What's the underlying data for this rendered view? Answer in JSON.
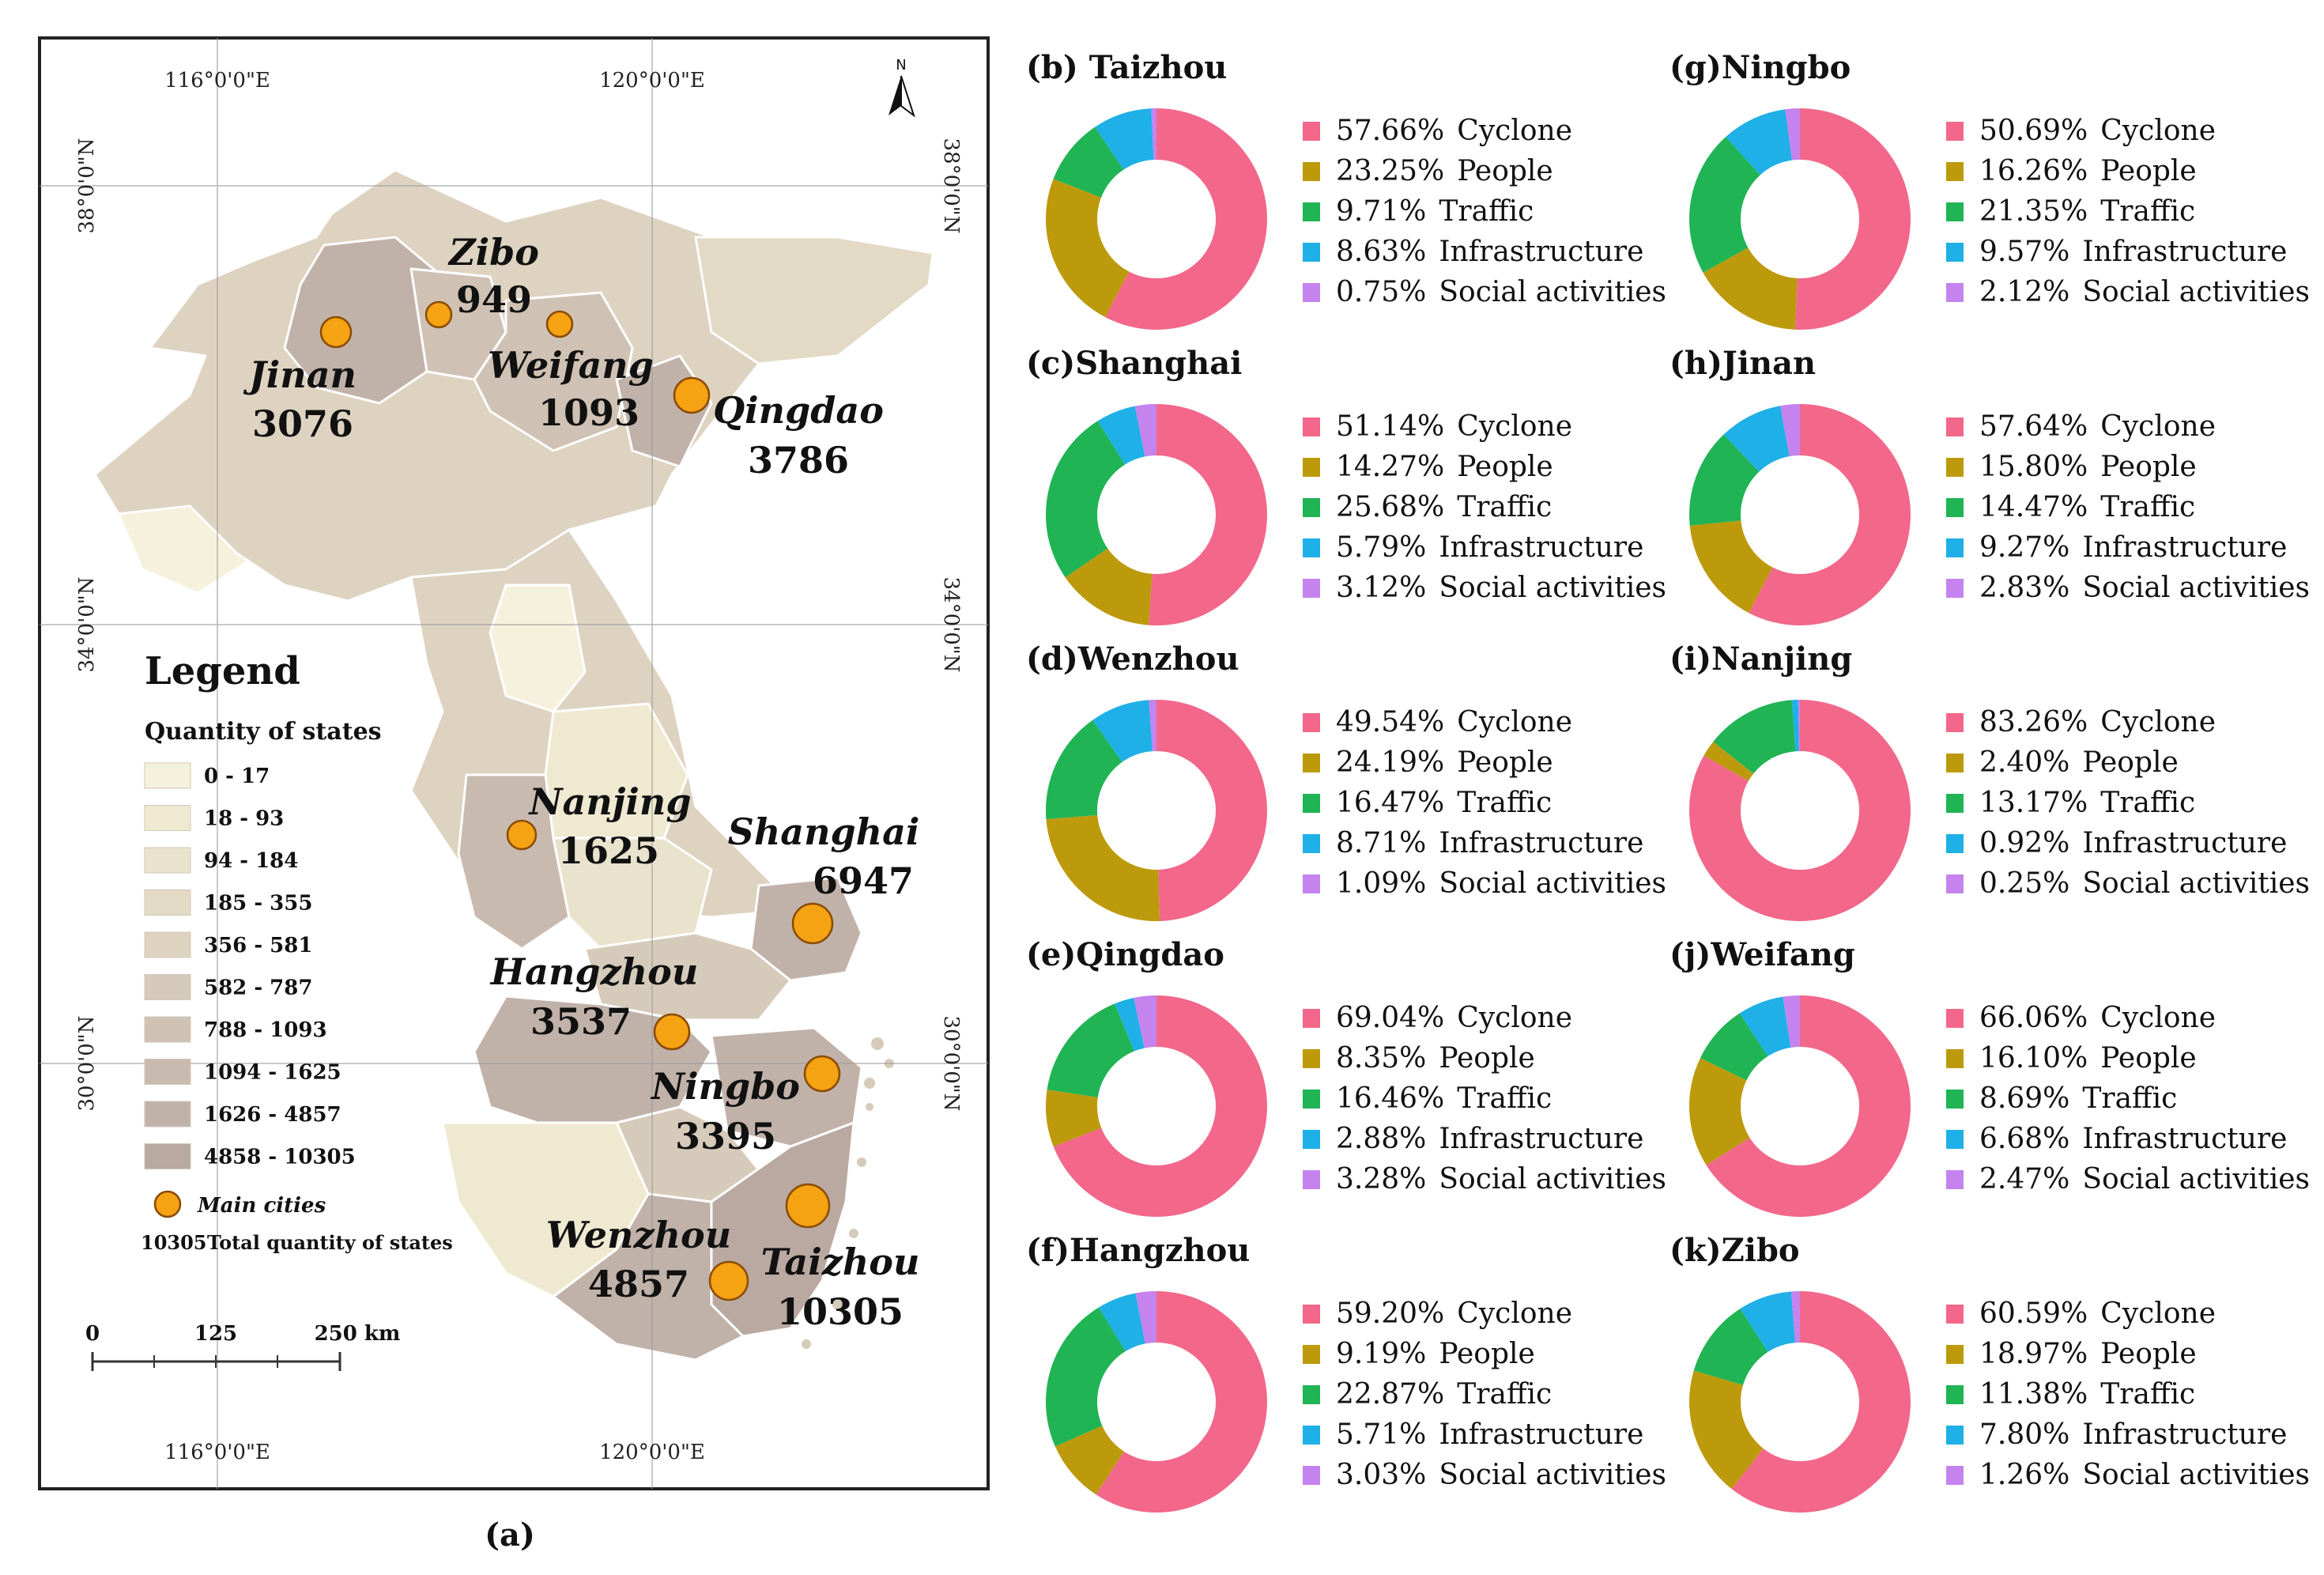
{
  "figure": {
    "map": {
      "panel_label": "(a)",
      "grid_labels": {
        "lon_left": "116°0'0\"E",
        "lon_right": "120°0'0\"E",
        "lat_top": "38°0'0\"N",
        "lat_mid": "34°0'0\"N",
        "lat_bottom": "30°0'0\"N"
      },
      "north_arrow": "N",
      "legend": {
        "title": "Legend",
        "subtitle": "Quantity of states",
        "classes": [
          {
            "label": "0 - 17",
            "color": "#f6f1dc"
          },
          {
            "label": "18 - 93",
            "color": "#efe9d2"
          },
          {
            "label": "94 - 184",
            "color": "#e9e2cc"
          },
          {
            "label": "185 - 355",
            "color": "#e3dac6"
          },
          {
            "label": "356 - 581",
            "color": "#ddd3c0"
          },
          {
            "label": "582 - 787",
            "color": "#d6cbba"
          },
          {
            "label": "788 - 1093",
            "color": "#cfc2b4"
          },
          {
            "label": "1094 - 1625",
            "color": "#c8baaf"
          },
          {
            "label": "1626 - 4857",
            "color": "#c1b2a9"
          },
          {
            "label": "4858 - 10305",
            "color": "#b9a9a1"
          }
        ],
        "main_cities_label": "Main cities",
        "total_value": "10305",
        "total_label": "Total quantity of states"
      },
      "scale_bar": [
        "0",
        "125",
        "250 km"
      ],
      "cities": [
        {
          "name": "Zibo",
          "value": "949"
        },
        {
          "name": "Jinan",
          "value": "3076"
        },
        {
          "name": "Weifang",
          "value": "1093"
        },
        {
          "name": "Qingdao",
          "value": "3786"
        },
        {
          "name": "Nanjing",
          "value": "1625"
        },
        {
          "name": "Shanghai",
          "value": "6947"
        },
        {
          "name": "Hangzhou",
          "value": "3537"
        },
        {
          "name": "Ningbo",
          "value": "3395"
        },
        {
          "name": "Wenzhou",
          "value": "4857"
        },
        {
          "name": "Taizhou",
          "value": "10305"
        }
      ]
    },
    "category_colors": [
      "#f2678a",
      "#bc9a0c",
      "#20b454",
      "#1eb0e6",
      "#c583ee"
    ]
  },
  "chart_data": [
    {
      "type": "pie",
      "title": "(b) Taizhou",
      "categories": [
        "Cyclone",
        "People",
        "Traffic",
        "Infrastructure",
        "Social activities"
      ],
      "values": [
        57.66,
        23.25,
        9.71,
        8.63,
        0.75
      ],
      "labels": [
        "57.66%",
        "23.25%",
        "9.71%",
        "8.63%",
        "0.75%"
      ]
    },
    {
      "type": "pie",
      "title": "(c)Shanghai",
      "categories": [
        "Cyclone",
        "People",
        "Traffic",
        "Infrastructure",
        "Social activities"
      ],
      "values": [
        51.14,
        14.27,
        25.68,
        5.79,
        3.12
      ],
      "labels": [
        "51.14%",
        "14.27%",
        "25.68%",
        "5.79%",
        "3.12%"
      ]
    },
    {
      "type": "pie",
      "title": "(d)Wenzhou",
      "categories": [
        "Cyclone",
        "People",
        "Traffic",
        "Infrastructure",
        "Social activities"
      ],
      "values": [
        49.54,
        24.19,
        16.47,
        8.71,
        1.09
      ],
      "labels": [
        "49.54%",
        "24.19%",
        "16.47%",
        "8.71%",
        "1.09%"
      ]
    },
    {
      "type": "pie",
      "title": "(e)Qingdao",
      "categories": [
        "Cyclone",
        "People",
        "Traffic",
        "Infrastructure",
        "Social activities"
      ],
      "values": [
        69.04,
        8.35,
        16.46,
        2.88,
        3.28
      ],
      "labels": [
        "69.04%",
        "8.35%",
        "16.46%",
        "2.88%",
        "3.28%"
      ]
    },
    {
      "type": "pie",
      "title": "(f)Hangzhou",
      "categories": [
        "Cyclone",
        "People",
        "Traffic",
        "Infrastructure",
        "Social activities"
      ],
      "values": [
        59.2,
        9.19,
        22.87,
        5.71,
        3.03
      ],
      "labels": [
        "59.20%",
        "9.19%",
        "22.87%",
        "5.71%",
        "3.03%"
      ]
    },
    {
      "type": "pie",
      "title": "(g)Ningbo",
      "categories": [
        "Cyclone",
        "People",
        "Traffic",
        "Infrastructure",
        "Social activities"
      ],
      "values": [
        50.69,
        16.26,
        21.35,
        9.57,
        2.12
      ],
      "labels": [
        "50.69%",
        "16.26%",
        "21.35%",
        "9.57%",
        "2.12%"
      ]
    },
    {
      "type": "pie",
      "title": "(h)Jinan",
      "categories": [
        "Cyclone",
        "People",
        "Traffic",
        "Infrastructure",
        "Social activities"
      ],
      "values": [
        57.64,
        15.8,
        14.47,
        9.27,
        2.83
      ],
      "labels": [
        "57.64%",
        "15.80%",
        "14.47%",
        "9.27%",
        "2.83%"
      ]
    },
    {
      "type": "pie",
      "title": "(i)Nanjing",
      "categories": [
        "Cyclone",
        "People",
        "Traffic",
        "Infrastructure",
        "Social activities"
      ],
      "values": [
        83.26,
        2.4,
        13.17,
        0.92,
        0.25
      ],
      "labels": [
        "83.26%",
        "2.40%",
        "13.17%",
        "0.92%",
        "0.25%"
      ]
    },
    {
      "type": "pie",
      "title": "(j)Weifang",
      "categories": [
        "Cyclone",
        "People",
        "Traffic",
        "Infrastructure",
        "Social activities"
      ],
      "values": [
        66.06,
        16.1,
        8.69,
        6.68,
        2.47
      ],
      "labels": [
        "66.06%",
        "16.10%",
        "8.69%",
        "6.68%",
        "2.47%"
      ]
    },
    {
      "type": "pie",
      "title": "(k)Zibo",
      "categories": [
        "Cyclone",
        "People",
        "Traffic",
        "Infrastructure",
        "Social activities"
      ],
      "values": [
        60.59,
        18.97,
        11.38,
        7.8,
        1.26
      ],
      "labels": [
        "60.59%",
        "18.97%",
        "11.38%",
        "7.80%",
        "1.26%"
      ]
    }
  ]
}
